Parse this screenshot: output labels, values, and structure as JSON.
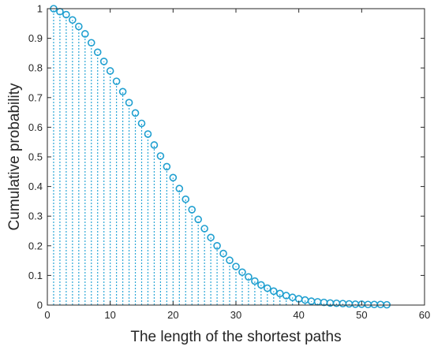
{
  "chart_data": {
    "type": "stem",
    "xlabel": "The length of the shortest paths",
    "ylabel": "Cumulative probability",
    "xlim": [
      0,
      60
    ],
    "ylim": [
      0,
      1
    ],
    "xticks": [
      0,
      10,
      20,
      30,
      40,
      50,
      60
    ],
    "yticks": [
      0,
      0.1,
      0.2,
      0.3,
      0.4,
      0.5,
      0.6,
      0.7,
      0.8,
      0.9,
      1
    ],
    "grid": false,
    "color": "#2aa6d6",
    "marker_color": "#1f9fd0",
    "x": [
      1,
      2,
      3,
      4,
      5,
      6,
      7,
      8,
      9,
      10,
      11,
      12,
      13,
      14,
      15,
      16,
      17,
      18,
      19,
      20,
      21,
      22,
      23,
      24,
      25,
      26,
      27,
      28,
      29,
      30,
      31,
      32,
      33,
      34,
      35,
      36,
      37,
      38,
      39,
      40,
      41,
      42,
      43,
      44,
      45,
      46,
      47,
      48,
      49,
      50,
      51,
      52,
      53,
      54
    ],
    "values": [
      1.0,
      0.99,
      0.98,
      0.962,
      0.94,
      0.915,
      0.885,
      0.853,
      0.822,
      0.79,
      0.755,
      0.72,
      0.683,
      0.648,
      0.613,
      0.577,
      0.54,
      0.503,
      0.467,
      0.43,
      0.393,
      0.357,
      0.322,
      0.289,
      0.258,
      0.228,
      0.2,
      0.174,
      0.151,
      0.13,
      0.111,
      0.095,
      0.081,
      0.068,
      0.057,
      0.047,
      0.039,
      0.032,
      0.026,
      0.021,
      0.017,
      0.013,
      0.011,
      0.009,
      0.007,
      0.006,
      0.005,
      0.004,
      0.003,
      0.003,
      0.002,
      0.002,
      0.002,
      0.001
    ]
  }
}
